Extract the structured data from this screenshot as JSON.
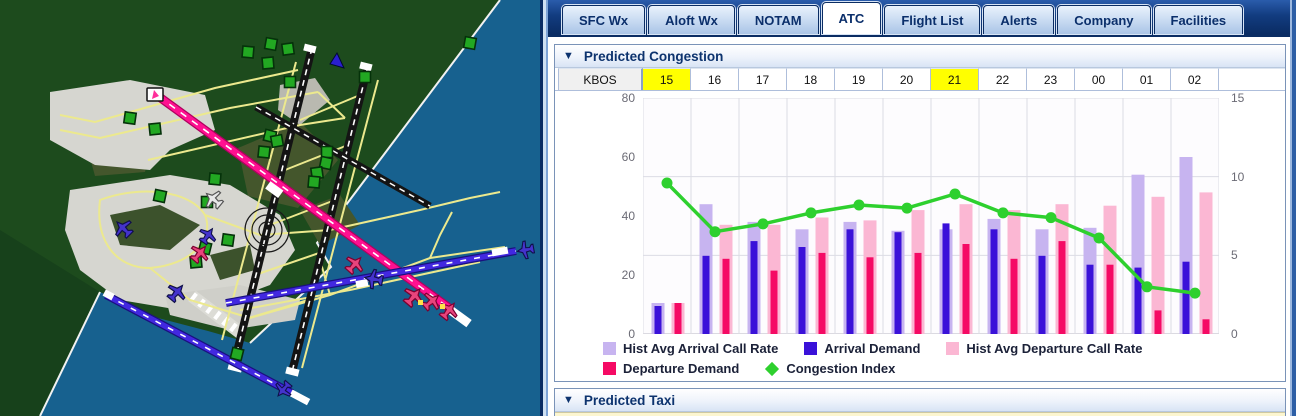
{
  "tabs": {
    "items": [
      {
        "label": "SFC Wx",
        "active": false
      },
      {
        "label": "Aloft Wx",
        "active": false
      },
      {
        "label": "NOTAM",
        "active": false
      },
      {
        "label": "ATC",
        "active": true
      },
      {
        "label": "Flight List",
        "active": false
      },
      {
        "label": "Alerts",
        "active": false
      },
      {
        "label": "Company",
        "active": false
      },
      {
        "label": "Facilities",
        "active": false
      }
    ]
  },
  "sections": {
    "congestion": {
      "title": "Predicted Congestion",
      "collapse_icon": "▼"
    },
    "taxi": {
      "title": "Predicted Taxi",
      "collapse_icon": "▼"
    }
  },
  "hour_row": {
    "station": "KBOS",
    "hours": [
      "15",
      "16",
      "17",
      "18",
      "19",
      "20",
      "21",
      "22",
      "23",
      "00",
      "01",
      "02"
    ],
    "highlighted": [
      "15",
      "21"
    ]
  },
  "chart_data": {
    "type": "bar+line",
    "categories": [
      "15",
      "16",
      "17",
      "18",
      "19",
      "20",
      "21",
      "22",
      "23",
      "00",
      "01",
      "02"
    ],
    "series": [
      {
        "name": "Hist Avg Arrival Call Rate",
        "type": "bar",
        "axis": "left",
        "color": "#c7b4f0",
        "values": [
          10.5,
          44,
          38,
          35.5,
          38,
          35,
          35.5,
          39,
          35.5,
          36,
          54,
          60
        ]
      },
      {
        "name": "Arrival Demand",
        "type": "bar",
        "axis": "left",
        "color": "#3a11d9",
        "values": [
          9.5,
          26.5,
          31.5,
          29.5,
          35.5,
          34.5,
          37.5,
          35.5,
          26.5,
          23.5,
          22.5,
          24.5
        ]
      },
      {
        "name": "Hist Avg Departure Call Rate",
        "type": "bar",
        "axis": "left",
        "color": "#fbb7d3",
        "values": [
          10.5,
          37,
          37,
          39.5,
          38.5,
          42,
          44,
          42,
          44,
          43.5,
          46.5,
          48
        ]
      },
      {
        "name": "Departure Demand",
        "type": "bar",
        "axis": "left",
        "color": "#f50a64",
        "values": [
          10.5,
          25.5,
          21.5,
          27.5,
          26,
          27.5,
          30.5,
          25.5,
          31.5,
          23.5,
          8,
          5
        ]
      },
      {
        "name": "Congestion Index",
        "type": "line",
        "axis": "right",
        "color": "#2ed02e",
        "values": [
          9.6,
          6.5,
          7.0,
          7.7,
          8.2,
          8.0,
          8.9,
          7.7,
          7.4,
          6.1,
          3.0,
          2.6
        ]
      }
    ],
    "left_axis": {
      "ticks": [
        0,
        20,
        40,
        60,
        80
      ],
      "max": 80
    },
    "right_axis": {
      "ticks": [
        0,
        5,
        10,
        15
      ],
      "max": 15
    },
    "grid": true,
    "legend_rows": [
      [
        0,
        1,
        2
      ],
      [
        3,
        4
      ]
    ]
  },
  "map": {
    "kind": "airport-surface-map",
    "icons": [
      "aircraft-target-icon",
      "aircraft-icon",
      "runway",
      "taxiway",
      "range-rings-icon"
    ],
    "colors": {
      "land_green": "#1d4b1d",
      "water_blue": "#17618f",
      "runway_black": "#141414",
      "runway_selected_magenta": "#ff1090",
      "runway_blue": "#4228e0",
      "taxiway_yellow": "#ece98e",
      "apron_gray": "#d6d6d0",
      "target_green": "#22a822"
    }
  },
  "colors": {
    "tab_bar_blue": "#10366f",
    "tab_fill": "#cfe0f4",
    "tab_text": "#0b2f6b",
    "active_tab_fill": "#ffffff",
    "section_title_text": "#0d336e",
    "hour_highlight_yellow": "#ffff00",
    "hist_arrival": "#c7b4f0",
    "arrival_demand": "#3a11d9",
    "hist_departure": "#fbb7d3",
    "departure_demand": "#f50a64",
    "congestion_index": "#2ed02e"
  }
}
